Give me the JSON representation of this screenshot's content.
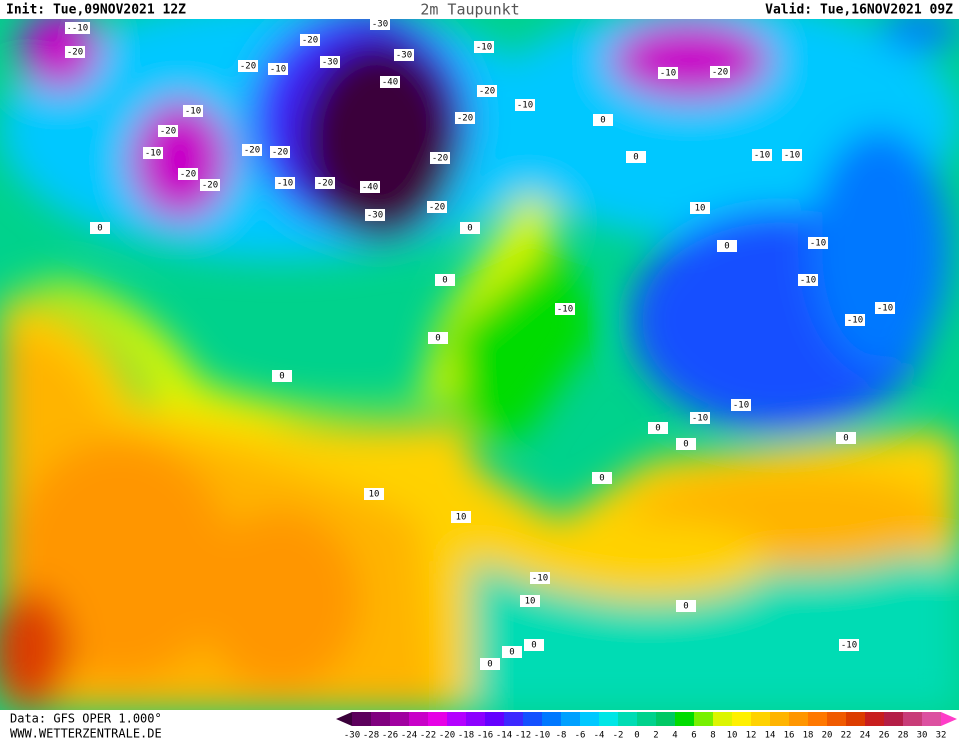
{
  "header": {
    "init": "Init: Tue,09NOV2021 12Z",
    "title": "2m Taupunkt",
    "valid": "Valid: Tue,16NOV2021 09Z"
  },
  "footer": {
    "source": "Data: GFS OPER 1.000°",
    "url": "WWW.WETTERZENTRALE.DE"
  },
  "scale": {
    "ticks": [
      -30,
      -28,
      -26,
      -24,
      -22,
      -20,
      -18,
      -16,
      -14,
      -12,
      -10,
      -8,
      -6,
      -4,
      -2,
      0,
      2,
      4,
      6,
      8,
      10,
      12,
      14,
      16,
      18,
      20,
      22,
      24,
      26,
      28,
      30,
      32
    ],
    "colors": [
      "#3a003a",
      "#5c005c",
      "#80007f",
      "#a000a0",
      "#c800c8",
      "#e600e6",
      "#b400ff",
      "#8c00ff",
      "#6400ff",
      "#3c28ff",
      "#1450ff",
      "#0078ff",
      "#00a0ff",
      "#00c8ff",
      "#00e6e6",
      "#00dcb4",
      "#00d28c",
      "#00c864",
      "#00dc00",
      "#78f000",
      "#dcf500",
      "#fff000",
      "#ffd200",
      "#ffb400",
      "#ff9600",
      "#ff7800",
      "#f05a00",
      "#dc3c00",
      "#c81e1e",
      "#b41e46",
      "#c83c78",
      "#dc50a0",
      "#ff3cc8"
    ]
  },
  "contour_labels": [
    -10,
    -10,
    -20,
    -10,
    -20,
    -10,
    -20,
    -20,
    -10,
    -20,
    -20,
    -20,
    -30,
    -30,
    -30,
    -40,
    -40,
    -30,
    -20,
    -20,
    -10,
    -10,
    -20,
    -20,
    -10,
    -20,
    -20,
    -20,
    -10,
    -10,
    -10,
    0,
    0,
    0,
    0,
    0,
    0,
    10,
    10,
    10,
    0,
    -10,
    -10,
    -10,
    -10,
    -10,
    -10,
    -10,
    0,
    0,
    0,
    0,
    10,
    0,
    -10,
    -10,
    0,
    0,
    0,
    0
  ]
}
